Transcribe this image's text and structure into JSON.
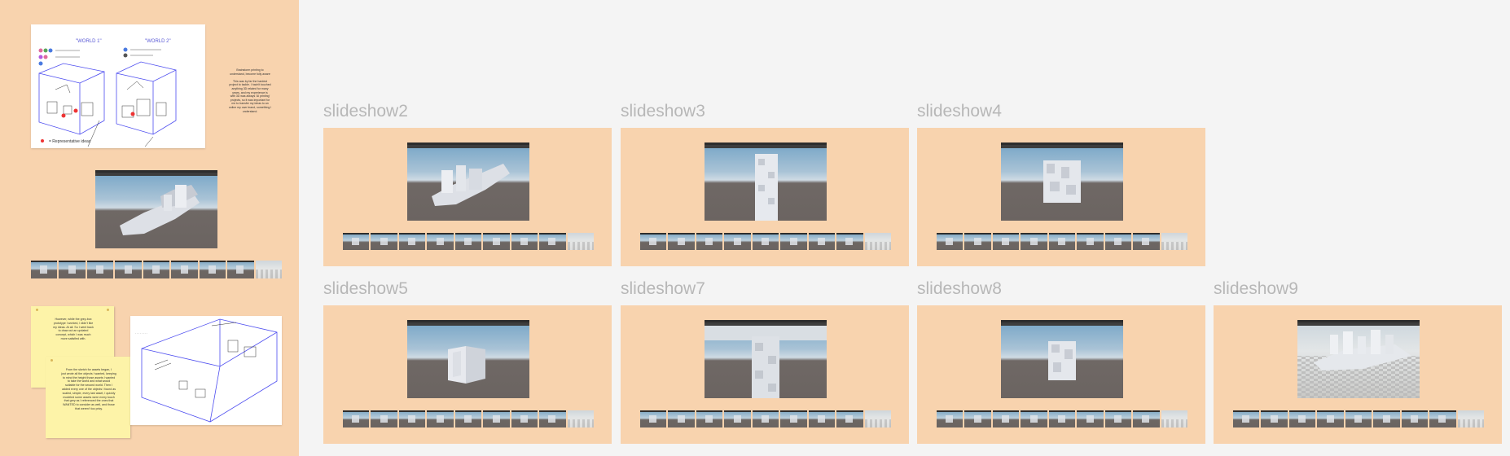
{
  "left_panel": {
    "sketch": {
      "world1_title": "\"WORLD 1\"",
      "world2_title": "\"WORLD 2\"",
      "legend_caption": "= Representative ideas"
    },
    "note_text": "Brainstorm printing to\nunderstand, become fully aware\n\nThis was by far the hardest\nproject to tackle. I hadn't touched\nanything 3D related for many\nyears, and my experience is\nwith 3D was always 'AI printing'\nprojects, so it was important for\nme to transfer my ideas to an\nonline my own brand, something I\nunderstand.",
    "sticky1_text": "However, while the grey-box\nprototype I worked, I didn't like\nmy ideas. At all. So I went back\nto draw out an updated\nconcept, which I was much\nmore satisfied with.",
    "sticky2_text": "From the sketch for assets began, I\njust wrote all the objects I wanted, keeping\nto mind the height those assets I wanted\nto take the world and what would\nsuitable for the second world. Then I\nadded every one of the objects I found as\nscaled, simple, every last asset, I quickly\nmodeled some assets were every touch\nthat grey as I referenced the ones that\nWANTED to consider as well, and those\nthat weren't too pricy."
  },
  "slideshows": [
    {
      "label": "slideshow2"
    },
    {
      "label": "slideshow3"
    },
    {
      "label": "slideshow4"
    },
    {
      "label": "slideshow5"
    },
    {
      "label": "slideshow7"
    },
    {
      "label": "slideshow8"
    },
    {
      "label": "slideshow9"
    }
  ]
}
